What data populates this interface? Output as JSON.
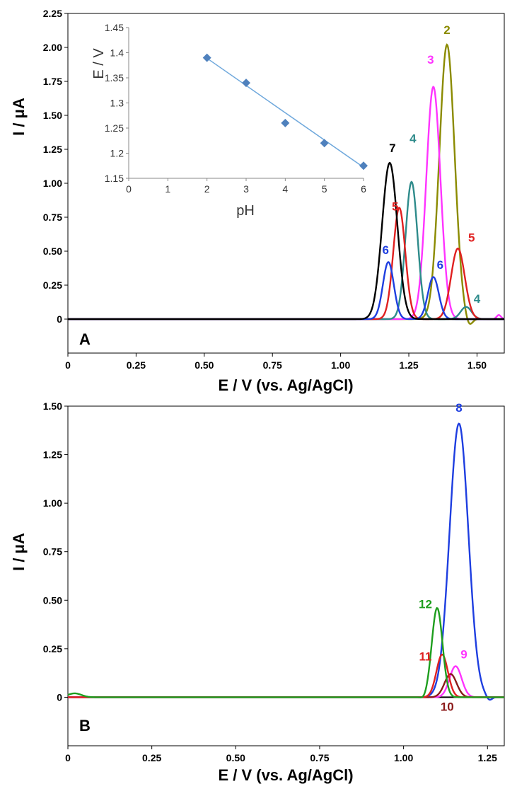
{
  "colors": {
    "c1": "#000000",
    "c2": "#8B8B00",
    "c3": "#FF33FF",
    "c4": "#2E8B8B",
    "c5": "#E02020",
    "c6": "#1E3EE0",
    "c7": "#000000",
    "c8": "#1E3EE0",
    "c9": "#FF33FF",
    "c10": "#8B1A1A",
    "c11": "#E02020",
    "c12": "#1E9E1E",
    "inset": "#4F81BD",
    "inset_line": "#6FA8DC"
  },
  "chart_data": [
    {
      "type": "line",
      "panel": "A",
      "xlabel": "E / V (vs. Ag/AgCl)",
      "ylabel": "I / μA",
      "xlim": [
        0,
        1.6
      ],
      "ylim": [
        -0.25,
        2.25
      ],
      "xticks": [
        "0",
        "0.25",
        "0.50",
        "0.75",
        "1.00",
        "1.25",
        "1.50"
      ],
      "yticks": [
        "0",
        "0.25",
        "0.50",
        "0.75",
        "1.00",
        "1.25",
        "1.50",
        "1.75",
        "2.00",
        "2.25"
      ],
      "series": [
        {
          "name": "2",
          "color_key": "c2",
          "baseline": 0,
          "peaks": [
            {
              "x": 1.39,
              "h": 2.02,
              "w": 0.028
            },
            {
              "x": 1.47,
              "h": -0.06,
              "w": 0.012
            }
          ]
        },
        {
          "name": "3",
          "color_key": "c3",
          "baseline": 0,
          "peaks": [
            {
              "x": 1.34,
              "h": 1.71,
              "w": 0.026
            },
            {
              "x": 1.58,
              "h": 0.03,
              "w": 0.008
            }
          ]
        },
        {
          "name": "4",
          "color_key": "c4",
          "baseline": 0,
          "peaks": [
            {
              "x": 1.26,
              "h": 1.01,
              "w": 0.022
            },
            {
              "x": 1.46,
              "h": 0.09,
              "w": 0.02
            }
          ]
        },
        {
          "name": "5",
          "color_key": "c5",
          "baseline": 0,
          "peaks": [
            {
              "x": 1.215,
              "h": 0.82,
              "w": 0.022
            },
            {
              "x": 1.43,
              "h": 0.52,
              "w": 0.025
            }
          ]
        },
        {
          "name": "6",
          "color_key": "c6",
          "baseline": 0,
          "peaks": [
            {
              "x": 1.175,
              "h": 0.42,
              "w": 0.02
            },
            {
              "x": 1.34,
              "h": 0.31,
              "w": 0.02
            }
          ]
        },
        {
          "name": "7",
          "color_key": "c7",
          "baseline": 0,
          "peaks": [
            {
              "x": 1.18,
              "h": 1.15,
              "w": 0.028
            }
          ]
        }
      ],
      "labels": [
        {
          "text": "2",
          "x": 1.39,
          "y": 2.1,
          "color_key": "c2"
        },
        {
          "text": "3",
          "x": 1.33,
          "y": 1.88,
          "color_key": "c3"
        },
        {
          "text": "4",
          "x": 1.265,
          "y": 1.3,
          "color_key": "c4"
        },
        {
          "text": "5",
          "x": 1.2,
          "y": 0.8,
          "color_key": "c5"
        },
        {
          "text": "6",
          "x": 1.165,
          "y": 0.48,
          "color_key": "c6"
        },
        {
          "text": "7",
          "x": 1.19,
          "y": 1.23,
          "color_key": "c7"
        },
        {
          "text": "5",
          "x": 1.48,
          "y": 0.57,
          "color_key": "c5"
        },
        {
          "text": "6",
          "x": 1.365,
          "y": 0.37,
          "color_key": "c6"
        },
        {
          "text": "4",
          "x": 1.5,
          "y": 0.12,
          "color_key": "c4"
        }
      ],
      "panel_label": "A"
    },
    {
      "type": "scatter",
      "panel": "A-inset",
      "xlabel": "pH",
      "ylabel": "E / V",
      "xlim": [
        0,
        6
      ],
      "ylim": [
        1.15,
        1.45
      ],
      "xticks": [
        "0",
        "1",
        "2",
        "3",
        "4",
        "5",
        "6"
      ],
      "yticks": [
        "1.15",
        "1.2",
        "1.25",
        "1.3",
        "1.35",
        "1.4",
        "1.45"
      ],
      "x": [
        2,
        3,
        4,
        5,
        6
      ],
      "y": [
        1.39,
        1.34,
        1.26,
        1.22,
        1.175
      ],
      "trendline": {
        "x": [
          2,
          6
        ],
        "y": [
          1.389,
          1.172
        ]
      }
    },
    {
      "type": "line",
      "panel": "B",
      "xlabel": "E / V (vs. Ag/AgCl)",
      "ylabel": "I / μA",
      "xlim": [
        0,
        1.3
      ],
      "ylim": [
        -0.25,
        1.5
      ],
      "xticks": [
        "0",
        "0.25",
        "0.50",
        "0.75",
        "1.00",
        "1.25"
      ],
      "yticks": [
        "0",
        "0.25",
        "0.50",
        "0.75",
        "1.00",
        "1.25",
        "1.50"
      ],
      "series": [
        {
          "name": "8",
          "color_key": "c8",
          "baseline": 0,
          "peaks": [
            {
              "x": 1.165,
              "h": 1.41,
              "w": 0.028
            },
            {
              "x": 1.255,
              "h": -0.02,
              "w": 0.008
            }
          ]
        },
        {
          "name": "9",
          "color_key": "c9",
          "baseline": 0,
          "peaks": [
            {
              "x": 1.155,
              "h": 0.16,
              "w": 0.018
            }
          ]
        },
        {
          "name": "10",
          "color_key": "c10",
          "baseline": 0,
          "peaks": [
            {
              "x": 1.14,
              "h": 0.12,
              "w": 0.018
            }
          ]
        },
        {
          "name": "11",
          "color_key": "c11",
          "baseline": 0,
          "peaks": [
            {
              "x": 1.115,
              "h": 0.22,
              "w": 0.017
            }
          ]
        },
        {
          "name": "12",
          "color_key": "c12",
          "baseline": 0,
          "peaks": [
            {
              "x": 1.1,
              "h": 0.46,
              "w": 0.016
            },
            {
              "x": 1.06,
              "h": -0.01,
              "w": 0.008
            },
            {
              "x": 0.02,
              "h": 0.02,
              "w": 0.02
            }
          ]
        }
      ],
      "labels": [
        {
          "text": "8",
          "x": 1.165,
          "y": 1.47,
          "color_key": "c8"
        },
        {
          "text": "9",
          "x": 1.18,
          "y": 0.2,
          "color_key": "c9"
        },
        {
          "text": "10",
          "x": 1.13,
          "y": -0.07,
          "color_key": "c10"
        },
        {
          "text": "11",
          "x": 1.065,
          "y": 0.19,
          "color_key": "c11"
        },
        {
          "text": "12",
          "x": 1.065,
          "y": 0.46,
          "color_key": "c12"
        }
      ],
      "panel_label": "B"
    }
  ]
}
